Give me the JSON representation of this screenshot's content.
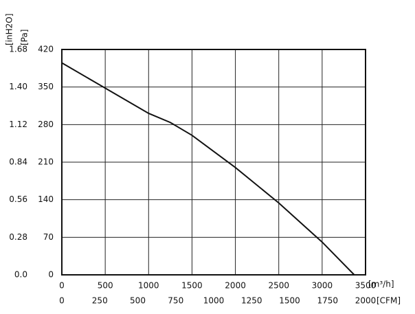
{
  "chart_data": {
    "type": "line",
    "x": [
      0,
      500,
      1000,
      1250,
      1500,
      2000,
      2500,
      3000,
      3370
    ],
    "series": [
      {
        "color": "#111111",
        "values": [
          395,
          348,
          301,
          284,
          260,
          200,
          134,
          61,
          0
        ]
      }
    ],
    "xlim": [
      0,
      3500
    ],
    "xticks": [
      0,
      500,
      1000,
      1500,
      2000,
      2500,
      3000,
      3500
    ],
    "ylim": [
      0,
      420
    ],
    "yticks": [
      0,
      70,
      140,
      210,
      280,
      350,
      420
    ],
    "x2lim": [
      0,
      2000
    ],
    "x2ticks": [
      0,
      250,
      500,
      750,
      1000,
      1250,
      1500,
      1750,
      2000
    ],
    "y2lim": [
      0,
      1.68
    ],
    "y2ticks": [
      {
        "value": 0,
        "label": "0.0"
      },
      0.28,
      0.56,
      0.84,
      1.12,
      {
        "value": 1.4,
        "label": "1.40"
      },
      1.68
    ],
    "xlabel": "[m³/h]",
    "x2label": "[CFM]",
    "ylabel": "[Pa]",
    "y2label": "[inH2O]",
    "grid": true
  }
}
